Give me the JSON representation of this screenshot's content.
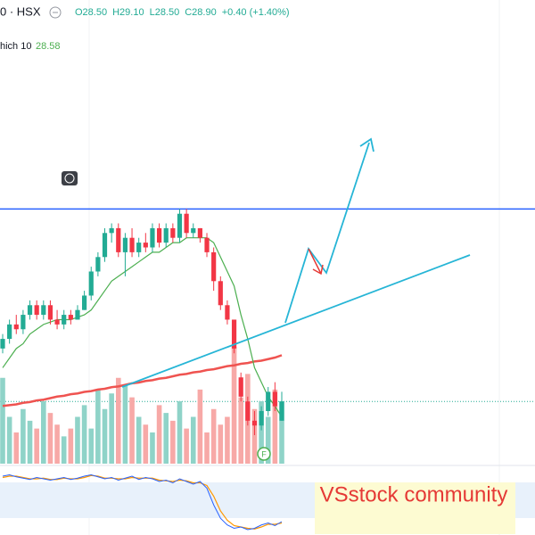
{
  "chart_data": {
    "type": "candlestick",
    "symbol": "0 · HSX",
    "ohlc_header": [
      "O28.50",
      "H29.10",
      "L28.50",
      "C28.90",
      "+0.40 (+1.40%)"
    ],
    "ma_label": "hich 10",
    "ma_value": "28.58",
    "watermark": "VSstock community",
    "candles": {
      "open": [
        30.0,
        30.2,
        30.5,
        30.4,
        30.7,
        30.9,
        30.7,
        30.9,
        30.6,
        30.5,
        30.7,
        30.6,
        30.8,
        31.1,
        31.6,
        31.9,
        32.4,
        32.5,
        32.0,
        32.3,
        32.0,
        32.2,
        32.1,
        32.5,
        32.2,
        32.5,
        32.3,
        32.8,
        32.4,
        32.5,
        32.3,
        32.0,
        31.4,
        30.9,
        30.6,
        29.4,
        28.9,
        28.5,
        28.4,
        28.7,
        29.1,
        28.5
      ],
      "high": [
        30.3,
        30.6,
        30.7,
        30.8,
        31.0,
        31.0,
        31.0,
        31.0,
        30.8,
        30.8,
        30.8,
        30.9,
        31.2,
        31.7,
        32.0,
        32.5,
        32.6,
        32.6,
        32.4,
        32.5,
        32.3,
        32.4,
        32.6,
        32.6,
        32.6,
        32.6,
        32.9,
        32.9,
        32.6,
        32.5,
        32.4,
        32.1,
        31.5,
        31.0,
        30.6,
        29.5,
        29.0,
        28.7,
        28.8,
        29.2,
        29.3,
        29.1
      ],
      "low": [
        29.9,
        30.1,
        30.3,
        30.3,
        30.6,
        30.6,
        30.6,
        30.5,
        30.4,
        30.4,
        30.5,
        30.6,
        30.8,
        31.0,
        31.5,
        31.8,
        32.2,
        31.9,
        31.5,
        31.9,
        31.9,
        32.0,
        32.0,
        32.1,
        32.1,
        32.2,
        32.2,
        32.3,
        32.3,
        32.2,
        31.9,
        31.2,
        30.8,
        30.5,
        29.9,
        28.9,
        28.4,
        28.2,
        28.3,
        28.6,
        28.7,
        28.5
      ],
      "close": [
        30.2,
        30.5,
        30.4,
        30.7,
        30.9,
        30.7,
        30.9,
        30.6,
        30.5,
        30.7,
        30.6,
        30.8,
        31.1,
        31.6,
        31.9,
        32.4,
        32.5,
        32.0,
        32.3,
        32.0,
        32.2,
        32.1,
        32.5,
        32.2,
        32.5,
        32.3,
        32.8,
        32.4,
        32.5,
        32.3,
        32.0,
        31.4,
        30.9,
        30.6,
        30.0,
        29.0,
        28.5,
        28.4,
        28.7,
        29.1,
        28.8,
        28.9
      ]
    },
    "ma10": [
      29.6,
      29.8,
      30.0,
      30.1,
      30.3,
      30.4,
      30.5,
      30.55,
      30.6,
      30.6,
      30.6,
      30.65,
      30.7,
      30.8,
      31.0,
      31.2,
      31.4,
      31.5,
      31.6,
      31.7,
      31.8,
      31.9,
      32.0,
      32.0,
      32.1,
      32.2,
      32.2,
      32.3,
      32.3,
      32.3,
      32.3,
      32.2,
      31.9,
      31.6,
      31.3,
      30.7,
      30.2,
      29.6,
      29.3,
      29.0,
      28.8,
      28.58
    ],
    "resistance": 32.9,
    "last_price": 28.9,
    "ylim": [
      27.7,
      36.5
    ],
    "volume": [
      110,
      60,
      40,
      70,
      55,
      45,
      80,
      65,
      50,
      35,
      45,
      60,
      75,
      45,
      95,
      70,
      90,
      110,
      100,
      85,
      60,
      50,
      40,
      75,
      65,
      55,
      80,
      45,
      60,
      95,
      40,
      70,
      50,
      60,
      150,
      85,
      115,
      70,
      80,
      60,
      95,
      80
    ],
    "volume_ma": [
      74,
      75,
      76,
      78,
      79,
      81,
      82,
      84,
      86,
      87,
      89,
      90,
      92,
      93,
      95,
      96,
      98,
      99,
      101,
      103,
      104,
      106,
      107,
      109,
      110,
      112,
      114,
      115,
      117,
      118,
      120,
      121,
      123,
      125,
      126,
      128,
      129,
      131,
      132,
      134,
      136,
      139
    ],
    "vlim": [
      0,
      160
    ],
    "oscillator": [
      88,
      90,
      87,
      85,
      83,
      86,
      84,
      82,
      84,
      86,
      83,
      85,
      88,
      90,
      87,
      84,
      86,
      82,
      85,
      88,
      83,
      86,
      84,
      80,
      82,
      78,
      84,
      80,
      76,
      80,
      70,
      45,
      25,
      15,
      10,
      12,
      8,
      10,
      15,
      18,
      14,
      20
    ],
    "oscillator_signal": [
      86,
      88,
      88,
      86,
      84,
      84,
      85,
      83,
      83,
      85,
      84,
      84,
      86,
      89,
      88,
      85,
      85,
      84,
      84,
      86,
      85,
      85,
      85,
      82,
      81,
      80,
      82,
      81,
      78,
      78,
      74,
      58,
      36,
      22,
      14,
      12,
      10,
      9,
      12,
      16,
      16,
      18
    ],
    "olim": [
      0,
      100
    ],
    "colors": {
      "up": "#22ab94",
      "down": "#f23645",
      "up_vol": "#8fd3c8",
      "down_vol": "#f7a9a7",
      "ma": "#4caf50",
      "resistance": "#2962ff",
      "volume_ma": "#ef5350",
      "oscillator": "#2962ff",
      "oscillator_signal": "#ff9800"
    }
  }
}
